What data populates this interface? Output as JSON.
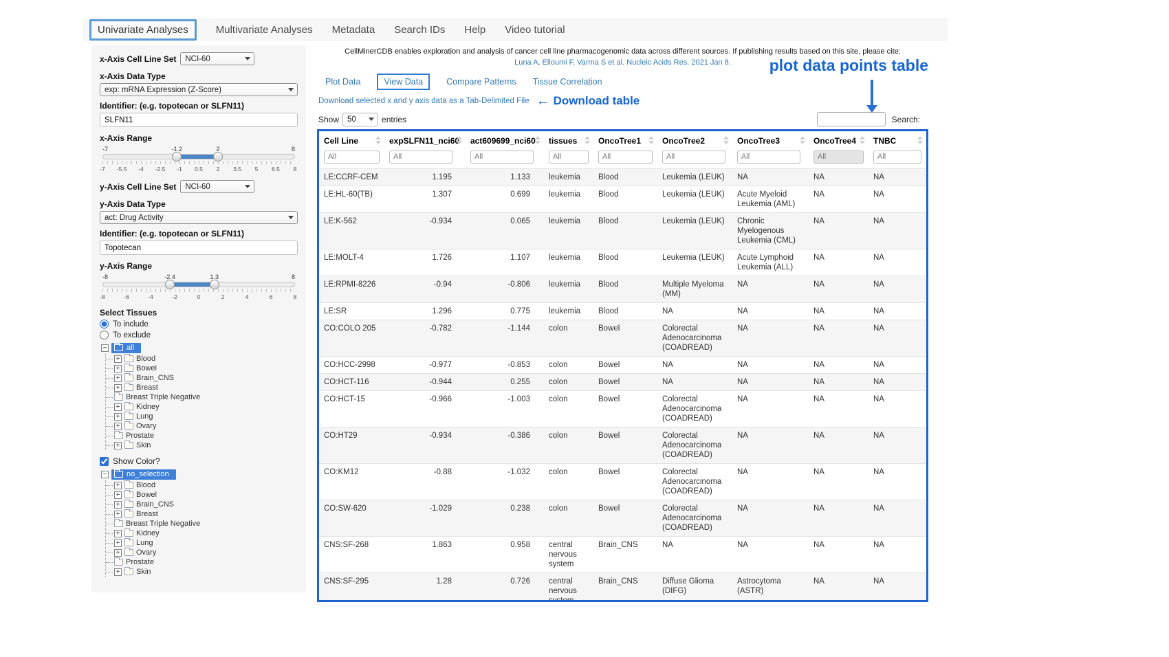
{
  "nav": {
    "items": [
      {
        "label": "Univariate Analyses",
        "active": true
      },
      {
        "label": "Multivariate Analyses",
        "active": false
      },
      {
        "label": "Metadata",
        "active": false
      },
      {
        "label": "Search IDs",
        "active": false
      },
      {
        "label": "Help",
        "active": false
      },
      {
        "label": "Video tutorial",
        "active": false
      }
    ]
  },
  "icons": {
    "left_arrow": "←",
    "expand_plus": "+",
    "collapse_minus": "−"
  },
  "colors": {
    "annotation_blue": "#1766d2",
    "link_blue": "#337ab7",
    "tree_highlight_blue": "#3d7fd9",
    "table_border_blue": "#1d63cf"
  },
  "sidebar": {
    "x_axis": {
      "cell_line_set_label": "x-Axis Cell Line Set",
      "cell_line_set_value": "NCI-60",
      "data_type_label": "x-Axis Data Type",
      "data_type_value": "exp: mRNA Expression (Z-Score)",
      "identifier_label": "Identifier: (e.g. topotecan or SLFN11)",
      "identifier_value": "SLFN11",
      "range_label": "x-Axis Range",
      "range": {
        "min": -7,
        "max": 8,
        "low": -1.2,
        "high": 2,
        "ticks": [
          "-7",
          "-5.5",
          "-4",
          "-2.5",
          "-1",
          "0.5",
          "2",
          "3.5",
          "5",
          "6.5",
          "8"
        ]
      }
    },
    "y_axis": {
      "cell_line_set_label": "y-Axis Cell Line Set",
      "cell_line_set_value": "NCI-60",
      "data_type_label": "y-Axis Data Type",
      "data_type_value": "act: Drug Activity",
      "identifier_label": "Identifier: (e.g. topotecan or SLFN11)",
      "identifier_value": "Topotecan",
      "range_label": "y-Axis Range",
      "range": {
        "min": -8,
        "max": 8,
        "low": -2.4,
        "high": 1.3,
        "ticks": [
          "-8",
          "-6",
          "-4",
          "-2",
          "0",
          "2",
          "4",
          "6",
          "8"
        ]
      }
    },
    "tissues": {
      "title": "Select Tissues",
      "radio_include": "To include",
      "radio_exclude": "To exclude",
      "include_root": "all",
      "exclude_root": "no_selection",
      "children": [
        {
          "label": "Blood",
          "expandable": true
        },
        {
          "label": "Bowel",
          "expandable": true
        },
        {
          "label": "Brain_CNS",
          "expandable": true
        },
        {
          "label": "Breast",
          "expandable": true
        },
        {
          "label": "Breast Triple Negative",
          "expandable": false
        },
        {
          "label": "Kidney",
          "expandable": true
        },
        {
          "label": "Lung",
          "expandable": true
        },
        {
          "label": "Ovary",
          "expandable": true
        },
        {
          "label": "Prostate",
          "expandable": false
        },
        {
          "label": "Skin",
          "expandable": true
        }
      ]
    },
    "show_color_label": "Show Color?"
  },
  "main": {
    "intro": "CellMinerCDB enables exploration and analysis of cancer cell line pharmacogenomic data across different sources. If publishing results based on this site, please cite:",
    "citation": "Luna A, Elloumi F, Varma S et al. Nucleic Acids Res. 2021 Jan 8.",
    "tabs": [
      {
        "label": "Plot Data",
        "active": false
      },
      {
        "label": "View Data",
        "active": true
      },
      {
        "label": "Compare Patterns",
        "active": false
      },
      {
        "label": "Tissue Correlation",
        "active": false
      }
    ],
    "download_link": "Download selected x and y axis data as a Tab-Delimited File",
    "show_label": "Show",
    "entries_value": "50",
    "entries_label": "entries",
    "search_label": "Search:",
    "search_value": ""
  },
  "annotations": {
    "download_table": "Download table",
    "plot_table": "plot data points table"
  },
  "table": {
    "filter_placeholder": "All",
    "columns": [
      {
        "label": "Cell Line",
        "align": "left"
      },
      {
        "label": "expSLFN11_nci60",
        "align": "right"
      },
      {
        "label": "act609699_nci60",
        "align": "right"
      },
      {
        "label": "tissues",
        "align": "left"
      },
      {
        "label": "OncoTree1",
        "align": "left"
      },
      {
        "label": "OncoTree2",
        "align": "left"
      },
      {
        "label": "OncoTree3",
        "align": "left"
      },
      {
        "label": "OncoTree4",
        "align": "left",
        "filter_disabled": true
      },
      {
        "label": "TNBC",
        "align": "left"
      }
    ],
    "rows": [
      [
        "LE:CCRF-CEM",
        "1.195",
        "1.133",
        "leukemia",
        "Blood",
        "Leukemia (LEUK)",
        "NA",
        "NA",
        "NA"
      ],
      [
        "LE:HL-60(TB)",
        "1.307",
        "0.699",
        "leukemia",
        "Blood",
        "Leukemia (LEUK)",
        "Acute Myeloid Leukemia (AML)",
        "NA",
        "NA"
      ],
      [
        "LE:K-562",
        "-0.934",
        "0.065",
        "leukemia",
        "Blood",
        "Leukemia (LEUK)",
        "Chronic Myelogenous Leukemia (CML)",
        "NA",
        "NA"
      ],
      [
        "LE:MOLT-4",
        "1.726",
        "1.107",
        "leukemia",
        "Blood",
        "Leukemia (LEUK)",
        "Acute Lymphoid Leukemia (ALL)",
        "NA",
        "NA"
      ],
      [
        "LE:RPMI-8226",
        "-0.94",
        "-0.806",
        "leukemia",
        "Blood",
        "Multiple Myeloma (MM)",
        "NA",
        "NA",
        "NA"
      ],
      [
        "LE:SR",
        "1.296",
        "0.775",
        "leukemia",
        "Blood",
        "NA",
        "NA",
        "NA",
        "NA"
      ],
      [
        "CO:COLO 205",
        "-0.782",
        "-1.144",
        "colon",
        "Bowel",
        "Colorectal Adenocarcinoma (COADREAD)",
        "NA",
        "NA",
        "NA"
      ],
      [
        "CO:HCC-2998",
        "-0.977",
        "-0.853",
        "colon",
        "Bowel",
        "NA",
        "NA",
        "NA",
        "NA"
      ],
      [
        "CO:HCT-116",
        "-0.944",
        "0.255",
        "colon",
        "Bowel",
        "NA",
        "NA",
        "NA",
        "NA"
      ],
      [
        "CO:HCT-15",
        "-0.966",
        "-1.003",
        "colon",
        "Bowel",
        "Colorectal Adenocarcinoma (COADREAD)",
        "NA",
        "NA",
        "NA"
      ],
      [
        "CO:HT29",
        "-0.934",
        "-0.386",
        "colon",
        "Bowel",
        "Colorectal Adenocarcinoma (COADREAD)",
        "NA",
        "NA",
        "NA"
      ],
      [
        "CO:KM12",
        "-0.88",
        "-1.032",
        "colon",
        "Bowel",
        "Colorectal Adenocarcinoma (COADREAD)",
        "NA",
        "NA",
        "NA"
      ],
      [
        "CO:SW-620",
        "-1.029",
        "0.238",
        "colon",
        "Bowel",
        "Colorectal Adenocarcinoma (COADREAD)",
        "NA",
        "NA",
        "NA"
      ],
      [
        "CNS:SF-268",
        "1.863",
        "0.958",
        "central nervous system",
        "Brain_CNS",
        "NA",
        "NA",
        "NA",
        "NA"
      ],
      [
        "CNS:SF-295",
        "1.28",
        "0.726",
        "central nervous system",
        "Brain_CNS",
        "Diffuse Glioma (DIFG)",
        "Astrocytoma (ASTR)",
        "NA",
        "NA"
      ]
    ]
  }
}
